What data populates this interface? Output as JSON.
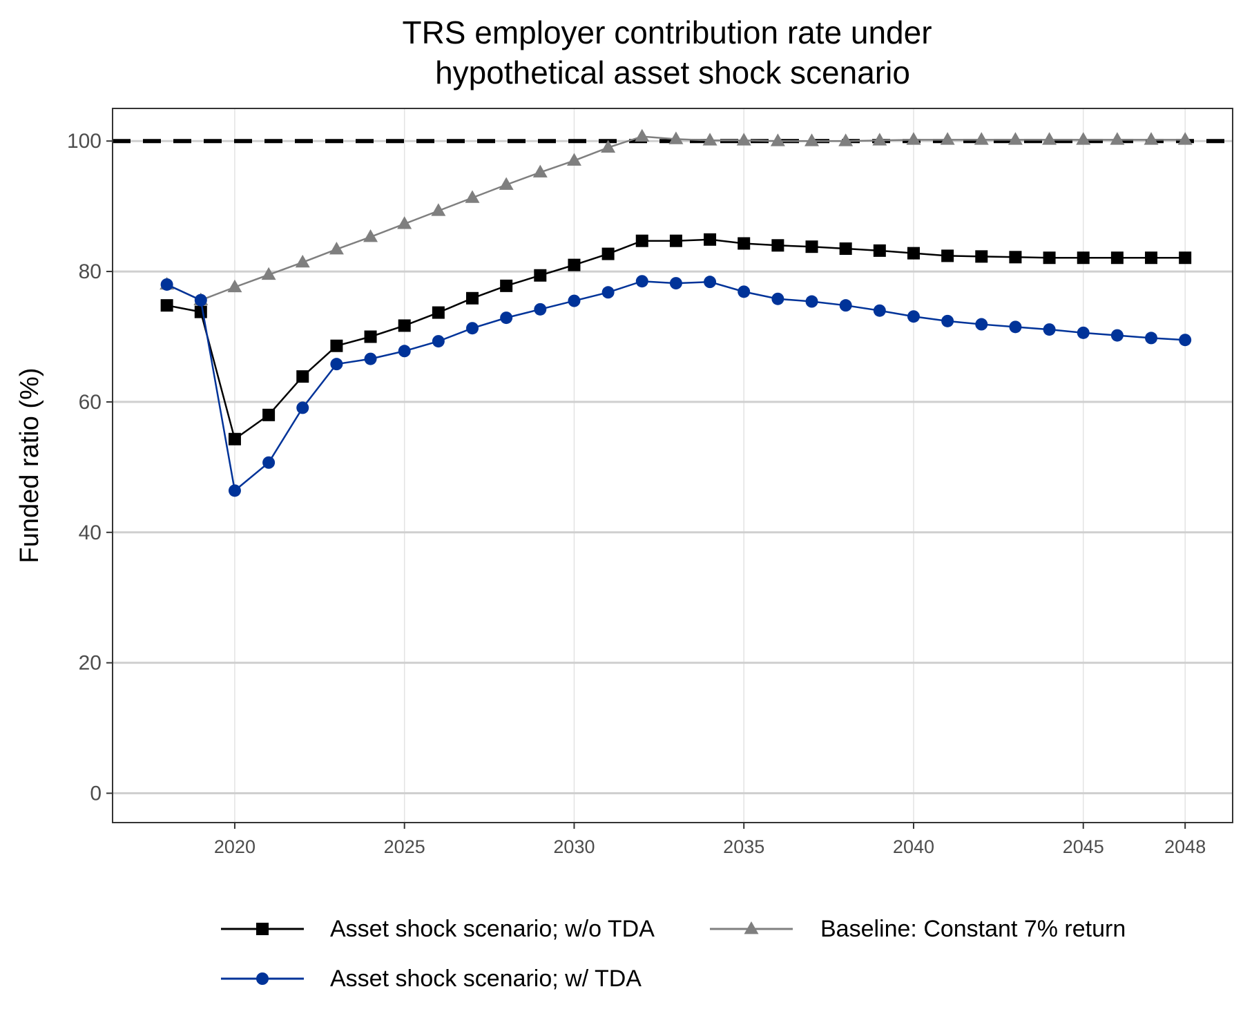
{
  "chart_data": {
    "type": "line",
    "title_lines": [
      "TRS employer contribution rate under",
      "hypothetical asset shock scenario"
    ],
    "xlabel": "",
    "ylabel": "Funded ratio (%)",
    "xlim": [
      2016.4,
      2049.4
    ],
    "ylim": [
      -4.5,
      105
    ],
    "x_ticks": [
      2020,
      2025,
      2030,
      2035,
      2040,
      2045,
      2048
    ],
    "y_ticks": [
      0,
      20,
      40,
      60,
      80,
      100
    ],
    "x_gridlines": [
      2020,
      2025,
      2030,
      2035,
      2040,
      2045,
      2048
    ],
    "y_gridlines": [
      0,
      20,
      40,
      60,
      80,
      100
    ],
    "reference_line": {
      "y": 100,
      "style": "dashed",
      "color": "#000000"
    },
    "legend_position": "bottom",
    "x": [
      2018,
      2019,
      2020,
      2021,
      2022,
      2023,
      2024,
      2025,
      2026,
      2027,
      2028,
      2029,
      2030,
      2031,
      2032,
      2033,
      2034,
      2035,
      2036,
      2037,
      2038,
      2039,
      2040,
      2041,
      2042,
      2043,
      2044,
      2045,
      2046,
      2047,
      2048
    ],
    "series": [
      {
        "name": "Asset shock scenario; w/o TDA",
        "color": "#000000",
        "marker": "square",
        "values": [
          74.8,
          73.8,
          54.3,
          58.0,
          63.9,
          68.6,
          70.0,
          71.7,
          73.7,
          75.9,
          77.8,
          79.4,
          81.0,
          82.7,
          84.7,
          84.7,
          84.9,
          84.3,
          84.0,
          83.8,
          83.5,
          83.2,
          82.8,
          82.4,
          82.3,
          82.2,
          82.1,
          82.1,
          82.1,
          82.1,
          82.1
        ]
      },
      {
        "name": "Asset shock scenario; w/ TDA",
        "color": "#003399",
        "marker": "circle",
        "values": [
          78.0,
          75.6,
          46.4,
          50.7,
          59.1,
          65.8,
          66.6,
          67.8,
          69.3,
          71.3,
          72.9,
          74.2,
          75.5,
          76.8,
          78.5,
          78.2,
          78.4,
          76.9,
          75.8,
          75.4,
          74.8,
          74.0,
          73.1,
          72.4,
          71.9,
          71.5,
          71.1,
          70.6,
          70.2,
          69.8,
          69.5
        ]
      },
      {
        "name": "Baseline: Constant 7% return",
        "color": "#7f7f7f",
        "marker": "triangle",
        "values": [
          78.0,
          75.6,
          77.6,
          79.5,
          81.4,
          83.4,
          85.3,
          87.3,
          89.3,
          91.3,
          93.3,
          95.2,
          97.0,
          99.0,
          100.7,
          100.3,
          100.1,
          100.1,
          100.0,
          100.0,
          100.0,
          100.1,
          100.2,
          100.2,
          100.2,
          100.2,
          100.2,
          100.2,
          100.2,
          100.2,
          100.2
        ]
      }
    ]
  }
}
